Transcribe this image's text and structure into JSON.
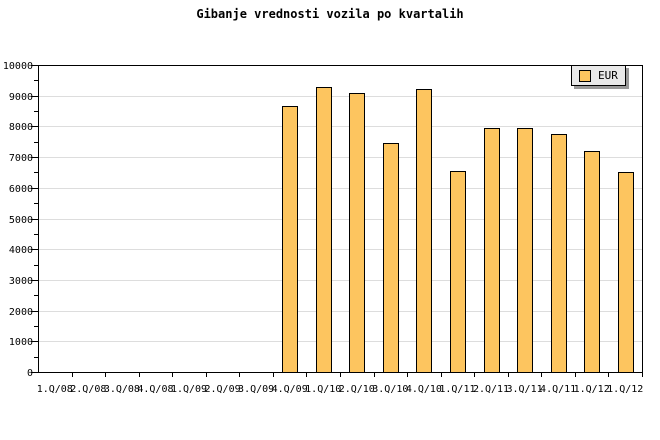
{
  "title": "Gibanje vrednosti vozila po kvartalih",
  "legend": {
    "label": "EUR"
  },
  "colors": {
    "background": "#FFFFFF",
    "bar_fill": "#FDC55F",
    "bar_border": "#000000",
    "grid": "#DDDDDD",
    "axis": "#000000",
    "legend_bg": "#E9E9E9",
    "legend_shadow": "#999999",
    "text": "#000000"
  },
  "chart_data": {
    "type": "bar",
    "title": "Gibanje vrednosti vozila po kvartalih",
    "categories": [
      "1.Q/08",
      "2.Q/08",
      "3.Q/08",
      "4.Q/08",
      "1.Q/09",
      "2.Q/09",
      "3.Q/09",
      "4.Q/09",
      "1.Q/10",
      "2.Q/10",
      "3.Q/10",
      "4.Q/10",
      "1.Q/11",
      "2.Q/11",
      "3.Q/11",
      "4.Q/11",
      "1.Q/12",
      "1.Q/12"
    ],
    "series": [
      {
        "name": "EUR",
        "values": [
          null,
          null,
          null,
          null,
          null,
          null,
          null,
          8660,
          9270,
          9080,
          7450,
          9210,
          6560,
          7940,
          7940,
          7740,
          7200,
          6510
        ]
      }
    ],
    "xlabel": "",
    "ylabel": "",
    "ylim": [
      0,
      10000
    ],
    "ytick_interval": 1000,
    "ytick_minor_interval": 500,
    "yticklabels": [
      "0",
      "1000",
      "2000",
      "3000",
      "4000",
      "5000",
      "6000",
      "7000",
      "8000",
      "9000",
      "10000"
    ],
    "grid": true,
    "legend_position": "top-right"
  }
}
